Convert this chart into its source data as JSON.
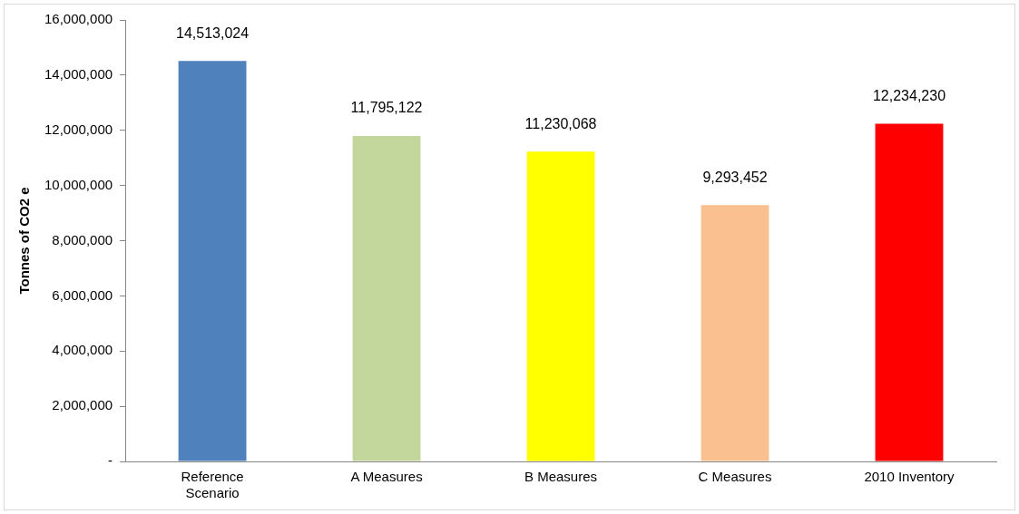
{
  "chart_data": {
    "type": "bar",
    "ylabel": "Tonnes of CO2 e",
    "categories": [
      "Reference Scenario",
      "A Measures",
      "B Measures",
      "C Measures",
      "2010 Inventory"
    ],
    "values": [
      14513024,
      11795122,
      11230068,
      9293452,
      12234230
    ],
    "colors": [
      "#4f81bd",
      "#c3d69b",
      "#ffff00",
      "#fac090",
      "#ff0000"
    ],
    "value_labels": [
      "14,513,024",
      "11,795,122",
      "11,230,068",
      "9,293,452",
      "12,234,230"
    ],
    "ylim": [
      0,
      16000000
    ],
    "yticks": [
      {
        "value": 0,
        "label": "-"
      },
      {
        "value": 2000000,
        "label": "2,000,000"
      },
      {
        "value": 4000000,
        "label": "4,000,000"
      },
      {
        "value": 6000000,
        "label": "6,000,000"
      },
      {
        "value": 8000000,
        "label": "8,000,000"
      },
      {
        "value": 10000000,
        "label": "10,000,000"
      },
      {
        "value": 12000000,
        "label": "12,000,000"
      },
      {
        "value": 14000000,
        "label": "14,000,000"
      },
      {
        "value": 16000000,
        "label": "16,000,000"
      }
    ],
    "grid": false,
    "legend": false
  }
}
